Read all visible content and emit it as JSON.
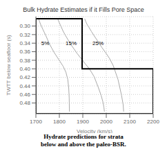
{
  "chart_data": {
    "type": "line",
    "title": "Bulk Hydrate Estimates if it Fills Pore Space",
    "xlabel": "Velocity (km/s)",
    "ylabel": "TWTT below seafloor (s)",
    "caption": "Hydrate predictions for strata\nbelow and above the paleo-BSR.",
    "xlim": [
      1700,
      2200
    ],
    "ylim": [
      0.505,
      0.278
    ],
    "xticks": [
      1700,
      1800,
      1900,
      2000,
      2100,
      2200
    ],
    "yticks": [
      {
        "value": 0.3,
        "label": "0.30"
      },
      {
        "value": 0.32,
        "label": "0.32"
      },
      {
        "value": 0.34,
        "label": "0.34"
      },
      {
        "value": 0.36,
        "label": "0.36"
      },
      {
        "value": 0.38,
        "label": "0.38"
      },
      {
        "value": 0.4,
        "label": "0.40"
      },
      {
        "value": 0.42,
        "label": "0.42"
      },
      {
        "value": 0.44,
        "label": "0.44"
      },
      {
        "value": 0.46,
        "label": "0.46"
      },
      {
        "value": 0.48,
        "label": "0.48"
      }
    ],
    "grid": true,
    "series": [
      {
        "color": "#aaaaaa",
        "x": [
          1712,
          1716,
          1720,
          1725,
          1730,
          1736,
          1743,
          1750,
          1758,
          1768,
          1778,
          1790,
          1803,
          1816,
          1828,
          1836,
          1840,
          1842,
          1843
        ],
        "values": [
          0.283,
          0.29,
          0.296,
          0.302,
          0.308,
          0.315,
          0.323,
          0.332,
          0.342,
          0.352,
          0.362,
          0.372,
          0.383,
          0.394,
          0.408,
          0.425,
          0.445,
          0.468,
          0.5
        ]
      },
      {
        "color": "#aaaaaa",
        "x": [
          1793,
          1798,
          1803,
          1808,
          1816,
          1826,
          1838,
          1850,
          1863,
          1877,
          1893,
          1910,
          1928,
          1948,
          1965,
          1978,
          1986,
          1990,
          1992
        ],
        "values": [
          0.283,
          0.29,
          0.296,
          0.302,
          0.312,
          0.322,
          0.333,
          0.344,
          0.354,
          0.365,
          0.376,
          0.388,
          0.4,
          0.418,
          0.442,
          0.462,
          0.478,
          0.49,
          0.5
        ]
      },
      {
        "color": "#aaaaaa",
        "x": [
          1908,
          1913,
          1918,
          1926,
          1937,
          1951,
          1966,
          1981,
          1997,
          2013,
          2030,
          2050,
          2065,
          2072,
          2074
        ],
        "values": [
          0.283,
          0.29,
          0.296,
          0.303,
          0.313,
          0.325,
          0.337,
          0.35,
          0.362,
          0.375,
          0.393,
          0.425,
          0.462,
          0.484,
          0.5
        ]
      },
      {
        "color": "#000000",
        "x": [
          1700,
          1897,
          1897,
          2200,
          2200,
          1700,
          1700
        ],
        "values": [
          0.283,
          0.283,
          0.4,
          0.4,
          0.505,
          0.505,
          0.283
        ]
      }
    ],
    "annotations": [
      {
        "text": "5%",
        "x": 1740,
        "y": 0.34
      },
      {
        "text": "15%",
        "x": 1850,
        "y": 0.34
      },
      {
        "text": "25%",
        "x": 1965,
        "y": 0.34
      }
    ]
  }
}
